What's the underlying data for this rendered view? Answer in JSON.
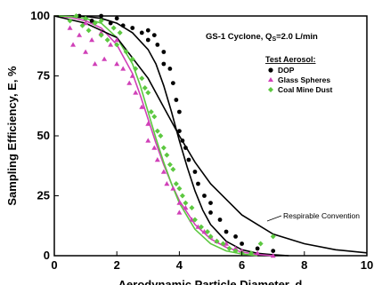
{
  "chart_data": {
    "type": "scatter",
    "title": "GS-1 Cyclone, Q",
    "title_sub": "S",
    "title_suffix": "=2.0 L/min",
    "xlabel": "Aerodynamic Particle Diameter, d",
    "ylabel": "Sampling Efficiency, E, %",
    "xlim": [
      0,
      10
    ],
    "ylim": [
      0,
      100
    ],
    "x_ticks": [
      "0",
      "2",
      "4",
      "6",
      "8",
      "10"
    ],
    "y_ticks": [
      "0",
      "25",
      "50",
      "75",
      "100"
    ],
    "grid": false,
    "legend": {
      "title": "Test Aerosol:",
      "placement": "top-right",
      "entries": [
        {
          "label": "DOP",
          "marker": "circle",
          "color": "#000000"
        },
        {
          "label": "Glass Spheres",
          "marker": "triangle",
          "color": "#d040b8"
        },
        {
          "label": "Coal Mine Dust",
          "marker": "diamond",
          "color": "#5cc840"
        }
      ]
    },
    "annotation": "Respirable Convention",
    "series": [
      {
        "name": "DOP",
        "marker": "circle",
        "color": "#000000",
        "x": [
          0.8,
          1.0,
          1.2,
          1.5,
          1.8,
          2.0,
          2.2,
          2.5,
          2.8,
          3.0,
          3.0,
          3.2,
          3.3,
          3.5,
          3.5,
          3.7,
          3.8,
          3.9,
          4.0,
          4.0,
          4.1,
          4.2,
          4.3,
          4.5,
          4.6,
          4.8,
          5.0,
          5.0,
          5.3,
          5.5,
          5.8,
          6.0,
          6.5,
          7.0
        ],
        "y": [
          100,
          99,
          98,
          100,
          97,
          99,
          96,
          95,
          93,
          94,
          90,
          92,
          88,
          85,
          80,
          78,
          72,
          65,
          60,
          52,
          48,
          45,
          40,
          35,
          30,
          25,
          22,
          18,
          15,
          10,
          8,
          5,
          3,
          2
        ]
      },
      {
        "name": "Glass Spheres",
        "marker": "triangle",
        "color": "#d040b8",
        "x": [
          0.5,
          0.6,
          0.8,
          1.0,
          1.0,
          1.2,
          1.3,
          1.5,
          1.6,
          1.8,
          2.0,
          2.0,
          2.2,
          2.4,
          2.5,
          2.6,
          2.8,
          3.0,
          3.0,
          3.2,
          3.3,
          3.5,
          3.6,
          3.8,
          4.0,
          4.0,
          4.2,
          4.4,
          4.6,
          4.8,
          5.0,
          5.2,
          5.5,
          5.8,
          6.0,
          6.5,
          7.0
        ],
        "y": [
          95,
          88,
          92,
          85,
          97,
          90,
          80,
          93,
          82,
          88,
          80,
          90,
          78,
          72,
          75,
          68,
          62,
          55,
          48,
          45,
          40,
          35,
          30,
          28,
          22,
          18,
          20,
          15,
          12,
          10,
          8,
          6,
          5,
          3,
          2,
          1,
          0
        ]
      },
      {
        "name": "Coal Mine Dust",
        "marker": "diamond",
        "color": "#5cc840",
        "x": [
          0.5,
          0.7,
          0.9,
          1.0,
          1.1,
          1.3,
          1.5,
          1.5,
          1.7,
          1.9,
          2.0,
          2.1,
          2.3,
          2.5,
          2.6,
          2.8,
          2.9,
          3.0,
          3.1,
          3.2,
          3.3,
          3.4,
          3.5,
          3.6,
          3.7,
          3.8,
          3.9,
          4.0,
          4.1,
          4.2,
          4.4,
          4.5,
          4.7,
          4.9,
          5.0,
          5.2,
          5.4,
          5.6,
          5.8,
          6.0,
          6.3,
          6.6,
          7.0
        ],
        "y": [
          98,
          100,
          96,
          99,
          94,
          97,
          92,
          98,
          90,
          95,
          88,
          93,
          85,
          82,
          78,
          74,
          70,
          68,
          60,
          58,
          52,
          50,
          45,
          42,
          38,
          36,
          30,
          28,
          25,
          22,
          20,
          15,
          12,
          10,
          8,
          6,
          5,
          3,
          2,
          1,
          1,
          5,
          8
        ]
      },
      {
        "name": "DOP fit",
        "type": "line",
        "color": "#000000",
        "x": [
          0,
          0.5,
          1,
          1.5,
          2,
          2.5,
          3,
          3.25,
          3.5,
          3.75,
          4,
          4.25,
          4.5,
          4.75,
          5,
          5.5,
          6,
          6.5,
          7,
          7.5
        ],
        "y": [
          100,
          100,
          99.8,
          99,
          97,
          93,
          86,
          80,
          71,
          60,
          48,
          37,
          27,
          19,
          13,
          6,
          2.5,
          1,
          0.4,
          0
        ]
      },
      {
        "name": "Glass Spheres fit",
        "type": "line",
        "color": "#d040b8",
        "x": [
          0,
          0.5,
          1,
          1.5,
          2,
          2.5,
          2.75,
          3,
          3.25,
          3.5,
          3.75,
          4,
          4.5,
          5,
          5.5,
          6,
          6.5,
          7
        ],
        "y": [
          100,
          99.5,
          98,
          95,
          88,
          76,
          67,
          57,
          47,
          38,
          30,
          23,
          13,
          7,
          3.5,
          1.5,
          0.5,
          0
        ]
      },
      {
        "name": "Coal Mine Dust fit",
        "type": "line",
        "color": "#5cc840",
        "x": [
          0,
          0.5,
          1,
          1.5,
          2,
          2.5,
          2.75,
          3,
          3.25,
          3.5,
          3.75,
          4,
          4.5,
          5,
          5.5,
          6,
          6.5
        ],
        "y": [
          100,
          99.8,
          99,
          97,
          91,
          80,
          71,
          60,
          49,
          39,
          30,
          22,
          11,
          5,
          2,
          0.7,
          0
        ]
      },
      {
        "name": "Respirable Convention",
        "type": "line",
        "color": "#000000",
        "x": [
          0,
          1,
          2,
          3,
          3.5,
          4,
          4.5,
          5,
          6,
          7,
          8,
          9,
          10
        ],
        "y": [
          100,
          97,
          91,
          74,
          62,
          50,
          39,
          30,
          17,
          9,
          5,
          2.5,
          1.2
        ]
      }
    ]
  }
}
